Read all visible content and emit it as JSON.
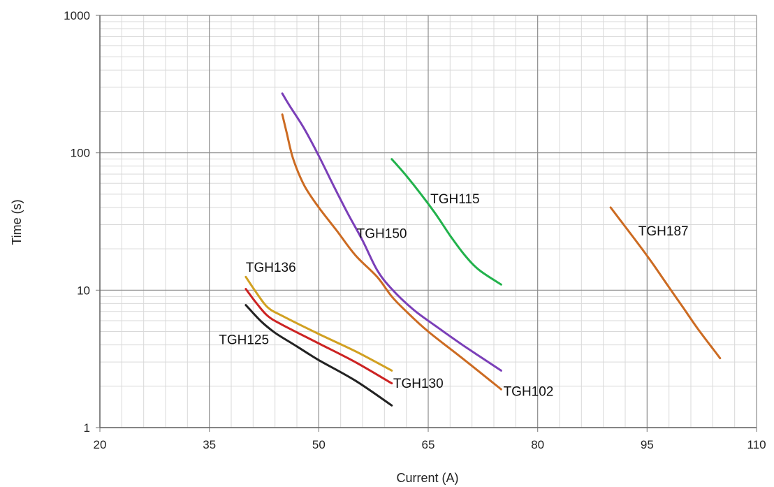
{
  "chart_data": {
    "type": "line",
    "title": "",
    "xlabel": "Current (A)",
    "ylabel": "Time (s)",
    "xlim": [
      20,
      110
    ],
    "ylim": [
      1,
      1000
    ],
    "y_scale": "log",
    "grid": true,
    "minor_grid": true,
    "x_ticks": [
      20,
      35,
      50,
      65,
      80,
      95,
      110
    ],
    "x_tick_labels": [
      "20",
      "35",
      "50",
      "65",
      "80",
      "95",
      "110"
    ],
    "y_ticks": [
      1,
      10,
      100,
      1000
    ],
    "y_tick_labels": [
      "1",
      "10",
      "100",
      "1000"
    ],
    "colors": {
      "grid_major": "#8c8c8c",
      "grid_minor": "#d9d9d9",
      "axis": "#666666"
    },
    "series": [
      {
        "name": "TGH102",
        "color": "#cc6b22",
        "points": [
          [
            45,
            190
          ],
          [
            45.6,
            140
          ],
          [
            46.5,
            90
          ],
          [
            48,
            58
          ],
          [
            50,
            40
          ],
          [
            52.5,
            27
          ],
          [
            55,
            18
          ],
          [
            58,
            12.5
          ],
          [
            60,
            9
          ],
          [
            62,
            7
          ],
          [
            65,
            5
          ],
          [
            70,
            3.1
          ],
          [
            75,
            1.9
          ]
        ]
      },
      {
        "name": "TGH150",
        "color": "#7b3fb8",
        "points": [
          [
            45,
            270
          ],
          [
            46,
            220
          ],
          [
            48,
            150
          ],
          [
            50,
            95
          ],
          [
            52,
            58
          ],
          [
            54,
            36
          ],
          [
            56,
            23
          ],
          [
            58,
            14
          ],
          [
            60,
            10.2
          ],
          [
            63,
            7.2
          ],
          [
            66,
            5.5
          ],
          [
            70,
            3.9
          ],
          [
            75,
            2.6
          ]
        ]
      },
      {
        "name": "TGH115",
        "color": "#22b24c",
        "points": [
          [
            60,
            90
          ],
          [
            62,
            68
          ],
          [
            64,
            50
          ],
          [
            66,
            36
          ],
          [
            68,
            25
          ],
          [
            70,
            18
          ],
          [
            72,
            14
          ],
          [
            75,
            11
          ]
        ]
      },
      {
        "name": "TGH187",
        "color": "#cc6b22",
        "points": [
          [
            90,
            40
          ],
          [
            92,
            29
          ],
          [
            94,
            21
          ],
          [
            96,
            15
          ],
          [
            98,
            10.5
          ],
          [
            100,
            7.4
          ],
          [
            102,
            5.2
          ],
          [
            105,
            3.2
          ]
        ]
      },
      {
        "name": "TGH136",
        "color": "#d1a021",
        "points": [
          [
            40,
            12.5
          ],
          [
            41.5,
            9.5
          ],
          [
            43,
            7.5
          ],
          [
            45,
            6.5
          ],
          [
            50,
            4.8
          ],
          [
            55,
            3.6
          ],
          [
            60,
            2.6
          ]
        ]
      },
      {
        "name": "TGH130",
        "color": "#cc2222",
        "points": [
          [
            40,
            10.2
          ],
          [
            41.5,
            8
          ],
          [
            43,
            6.5
          ],
          [
            45,
            5.6
          ],
          [
            50,
            4.1
          ],
          [
            55,
            3.0
          ],
          [
            60,
            2.1
          ]
        ]
      },
      {
        "name": "TGH125",
        "color": "#222222",
        "points": [
          [
            40,
            7.8
          ],
          [
            42,
            6
          ],
          [
            44,
            4.9
          ],
          [
            47,
            3.9
          ],
          [
            50,
            3.1
          ],
          [
            55,
            2.2
          ],
          [
            60,
            1.45
          ]
        ]
      }
    ],
    "annotations": [
      {
        "text": "TGH115",
        "x": 65.3,
        "y": 43
      },
      {
        "text": "TGH150",
        "x": 55.2,
        "y": 24
      },
      {
        "text": "TGH187",
        "x": 93.8,
        "y": 25
      },
      {
        "text": "TGH136",
        "x": 40,
        "y": 13.6
      },
      {
        "text": "TGH125",
        "x": 36.3,
        "y": 4.05
      },
      {
        "text": "TGH130",
        "x": 60.2,
        "y": 1.95
      },
      {
        "text": "TGH102",
        "x": 75.3,
        "y": 1.7
      }
    ]
  }
}
